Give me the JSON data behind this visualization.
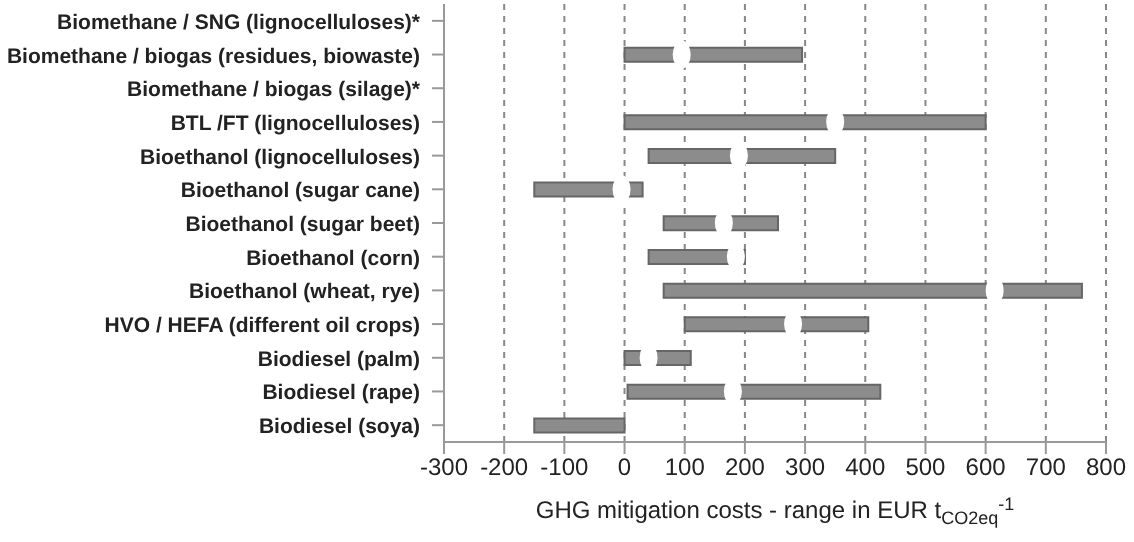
{
  "chart_data": {
    "type": "bar",
    "orientation": "horizontal",
    "xlabel": "GHG mitigation costs - range in EUR t$_{CO2eq}$$^{-1}$",
    "categories": [
      "Biomethane / SNG (lignocelluloses)*",
      "Biomethane / biogas (residues, biowaste)",
      "Biomethane / biogas (silage)*",
      "BTL /FT (lignocelluloses)",
      "Bioethanol (lignocelluloses)",
      "Bioethanol (sugar cane)",
      "Bioethanol (sugar beet)",
      "Bioethanol (corn)",
      "Bioethanol (wheat, rye)",
      "HVO / HEFA (different oil crops)",
      "Biodiesel (palm)",
      "Biodiesel (rape)",
      "Biodiesel (soya)"
    ],
    "series": [
      {
        "color": "#8c8c8c",
        "base": [
          null,
          0,
          null,
          0,
          40,
          -150,
          65,
          40,
          65,
          100,
          0,
          5,
          -150
        ],
        "values": [
          null,
          295,
          null,
          600,
          310,
          180,
          190,
          160,
          695,
          305,
          110,
          420,
          150
        ]
      },
      {
        "type": "scatter",
        "color": "#ffffff",
        "marker": "circle",
        "values": [
          null,
          95,
          null,
          350,
          190,
          -5,
          165,
          185,
          615,
          280,
          40,
          180,
          null
        ]
      }
    ],
    "xlim": [
      -300,
      800
    ],
    "xticks": [
      -300,
      -200,
      -100,
      0,
      100,
      200,
      300,
      400,
      500,
      600,
      700,
      800
    ],
    "grid": "x"
  }
}
